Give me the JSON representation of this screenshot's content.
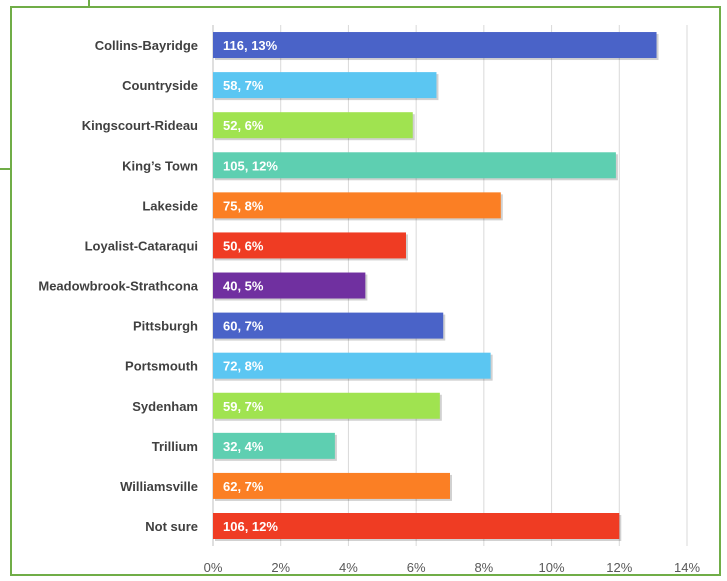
{
  "chart_data": {
    "type": "bar",
    "orientation": "horizontal",
    "categories": [
      "Collins-Bayridge",
      "Countryside",
      "Kingscourt-Rideau",
      "King’s Town",
      "Lakeside",
      "Loyalist-Cataraqui",
      "Meadowbrook-Strathcona",
      "Pittsburgh",
      "Portsmouth",
      "Sydenham",
      "Trillium",
      "Williamsville",
      "Not sure"
    ],
    "counts": [
      116,
      58,
      52,
      105,
      75,
      50,
      40,
      60,
      72,
      59,
      32,
      62,
      106
    ],
    "values": [
      13.1,
      6.6,
      5.9,
      11.9,
      8.5,
      5.7,
      4.5,
      6.8,
      8.2,
      6.7,
      3.6,
      7.0,
      12.0
    ],
    "data_labels": [
      "116, 13%",
      "58, 7%",
      "52, 6%",
      "105, 12%",
      "75, 8%",
      "50, 6%",
      "40, 5%",
      "60, 7%",
      "72, 8%",
      "59, 7%",
      "32, 4%",
      "62, 7%",
      "106, 12%"
    ],
    "colors": [
      "#4a63c8",
      "#5bc6f2",
      "#a0e350",
      "#5ecfb1",
      "#fb7f24",
      "#ef3c23",
      "#7030a0",
      "#4a63c8",
      "#5bc6f2",
      "#a0e350",
      "#5ecfb1",
      "#fb7f24",
      "#ef3c23"
    ],
    "x_ticks": [
      "0%",
      "2%",
      "4%",
      "6%",
      "8%",
      "10%",
      "12%",
      "14%"
    ],
    "xlim": [
      0,
      14
    ],
    "grid": "vertical",
    "legend": "none"
  }
}
